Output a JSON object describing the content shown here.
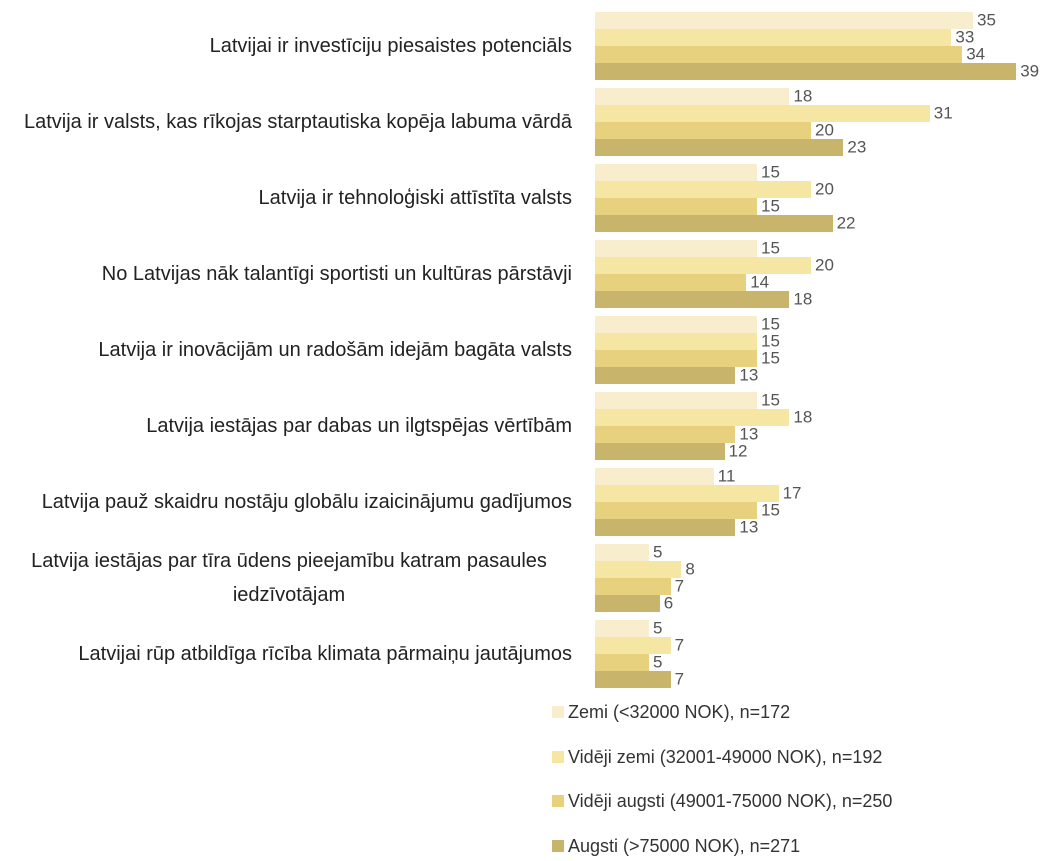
{
  "chart_data": {
    "type": "bar",
    "orientation": "horizontal",
    "categories": [
      "Latvijai ir investīciju piesaistes potenciāls",
      "Latvija ir valsts, kas rīkojas starptautiska kopēja labuma vārdā",
      "Latvija ir tehnoloģiski attīstīta valsts",
      "No Latvijas nāk talantīgi sportisti un kultūras pārstāvji",
      "Latvija ir inovācijām un radošām idejām bagāta valsts",
      "Latvija iestājas par dabas un ilgtspējas vērtībām",
      "Latvija pauž skaidru nostāju globālu izaicinājumu gadījumos",
      "Latvija iestājas par tīra ūdens pieejamību katram pasaules iedzīvotājam",
      "Latvijai rūp atbildīga rīcība klimata pārmaiņu jautājumos"
    ],
    "series": [
      {
        "name": "Zemi (<32000 NOK), n=172",
        "color": "#f8edcc",
        "values": [
          35,
          18,
          15,
          15,
          15,
          15,
          11,
          5,
          5
        ]
      },
      {
        "name": "Vidēji zemi (32001-49000 NOK), n=192",
        "color": "#f6e6a4",
        "values": [
          33,
          31,
          20,
          20,
          15,
          18,
          17,
          8,
          7
        ]
      },
      {
        "name": "Vidēji augsti (49001-75000 NOK), n=250",
        "color": "#e8d17e",
        "values": [
          34,
          20,
          15,
          14,
          15,
          13,
          15,
          7,
          5
        ]
      },
      {
        "name": "Augsti (>75000 NOK), n=271",
        "color": "#c9b46b",
        "values": [
          39,
          23,
          22,
          18,
          13,
          12,
          13,
          6,
          7
        ]
      }
    ]
  }
}
